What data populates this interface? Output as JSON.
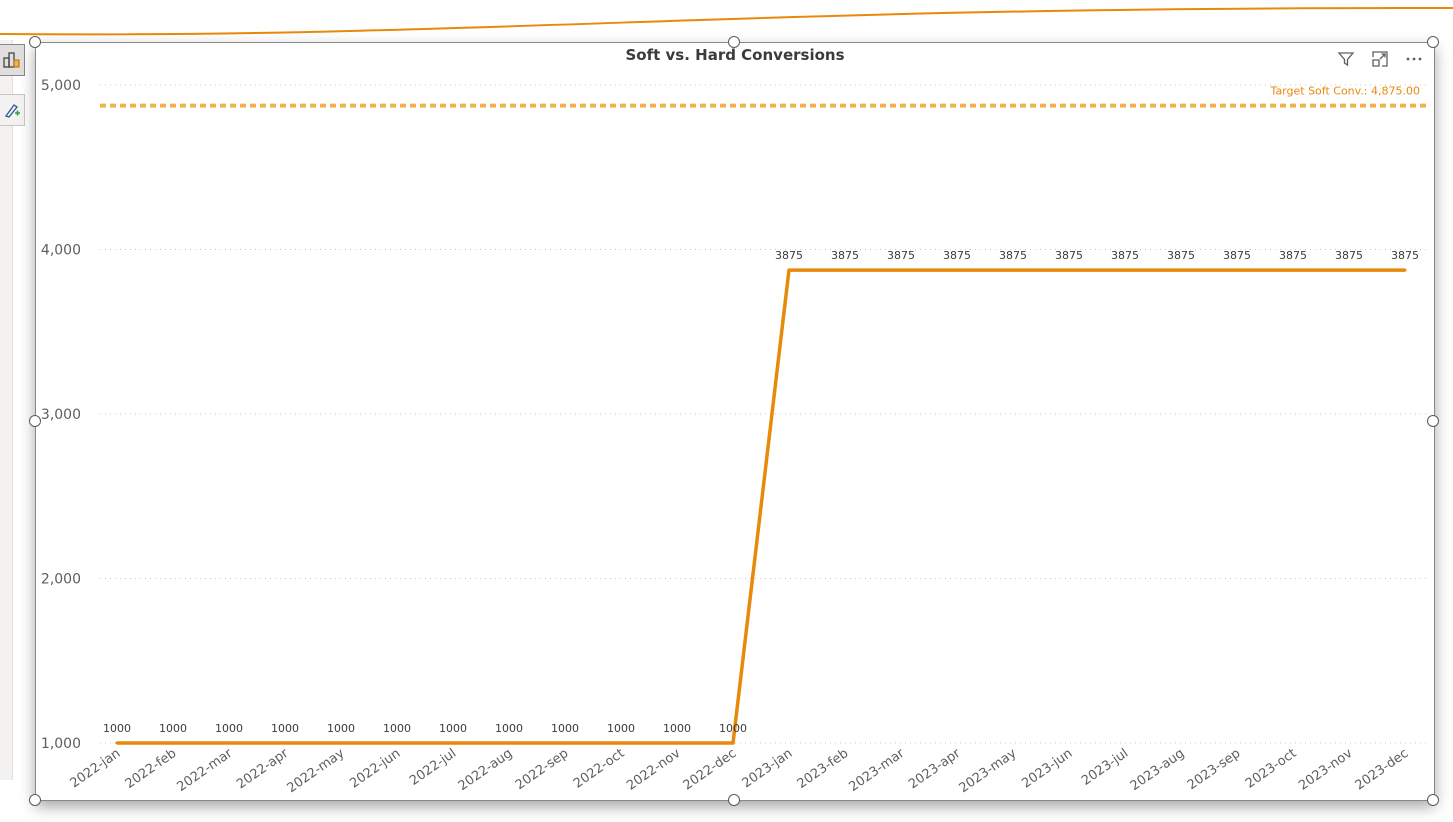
{
  "chart_data": {
    "type": "line",
    "title": "Soft vs. Hard Conversions",
    "xlabel": "",
    "ylabel": "",
    "categories": [
      "2022-jan",
      "2022-feb",
      "2022-mar",
      "2022-apr",
      "2022-may",
      "2022-jun",
      "2022-jul",
      "2022-aug",
      "2022-sep",
      "2022-oct",
      "2022-nov",
      "2022-dec",
      "2023-jan",
      "2023-feb",
      "2023-mar",
      "2023-apr",
      "2023-may",
      "2023-jun",
      "2023-jul",
      "2023-aug",
      "2023-sep",
      "2023-oct",
      "2023-nov",
      "2023-dec"
    ],
    "series": [
      {
        "values": [
          1000,
          1000,
          1000,
          1000,
          1000,
          1000,
          1000,
          1000,
          1000,
          1000,
          1000,
          1000,
          3875,
          3875,
          3875,
          3875,
          3875,
          3875,
          3875,
          3875,
          3875,
          3875,
          3875,
          3875
        ],
        "color": "#e8890c"
      }
    ],
    "data_labels": [
      "1000",
      "1000",
      "1000",
      "1000",
      "1000",
      "1000",
      "1000",
      "1000",
      "1000",
      "1000",
      "1000",
      "1000",
      "3875",
      "3875",
      "3875",
      "3875",
      "3875",
      "3875",
      "3875",
      "3875",
      "3875",
      "3875",
      "3875",
      "3875"
    ],
    "ylim": [
      1000,
      5000
    ],
    "yticks": [
      1000,
      2000,
      3000,
      4000,
      5000
    ],
    "ytick_labels": [
      "1,000",
      "2,000",
      "3,000",
      "4,000",
      "5,000"
    ],
    "grid": true,
    "reference_line": {
      "label": "Target Soft Conv.: 4,875.00",
      "value": 4875,
      "color": "#f2b24b"
    }
  },
  "header_icons": [
    "filter-icon",
    "focus-mode-icon",
    "more-options-icon"
  ],
  "side_tools": [
    "format-visual-icon",
    "analytics-icon"
  ],
  "colors": {
    "line": "#e8890c",
    "target_line": "#f2b24b",
    "target_text": "#e8890c",
    "grid": "#c8c8c8"
  }
}
